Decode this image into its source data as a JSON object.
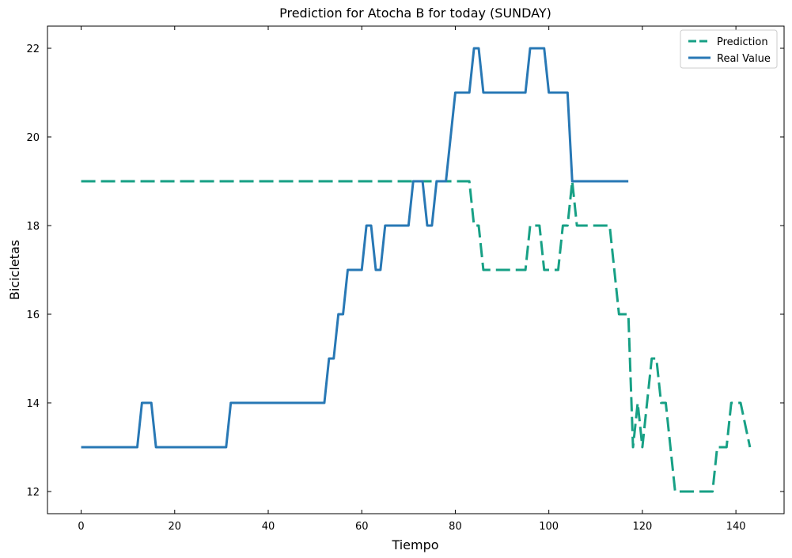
{
  "chart_data": {
    "type": "line",
    "title": "Prediction for Atocha B for today (SUNDAY)",
    "xlabel": "Tiempo",
    "ylabel": "Bicicletas",
    "xlim": [
      -7.2,
      150.3
    ],
    "ylim": [
      11.5,
      22.5
    ],
    "xticks": [
      0,
      20,
      40,
      60,
      80,
      100,
      120,
      140
    ],
    "yticks": [
      12,
      14,
      16,
      18,
      20,
      22
    ],
    "grid": false,
    "legend": {
      "placement": "top-right"
    },
    "series": [
      {
        "name": "Prediction",
        "color": "#17a085",
        "style": "dashed",
        "points": [
          [
            0,
            19
          ],
          [
            83,
            19
          ],
          [
            84,
            18
          ],
          [
            85,
            18
          ],
          [
            86,
            17
          ],
          [
            95,
            17
          ],
          [
            96,
            18
          ],
          [
            98,
            18
          ],
          [
            99,
            17
          ],
          [
            102,
            17
          ],
          [
            103,
            18
          ],
          [
            104,
            18
          ],
          [
            105,
            19
          ],
          [
            106,
            18
          ],
          [
            113,
            18
          ],
          [
            115,
            16
          ],
          [
            117,
            16
          ],
          [
            118,
            13
          ],
          [
            119,
            14
          ],
          [
            120,
            13
          ],
          [
            121,
            14
          ],
          [
            122,
            15
          ],
          [
            123,
            15
          ],
          [
            124,
            14
          ],
          [
            125,
            14
          ],
          [
            127,
            12
          ],
          [
            135,
            12
          ],
          [
            136,
            13
          ],
          [
            138,
            13
          ],
          [
            139,
            14
          ],
          [
            141,
            14
          ],
          [
            143,
            13
          ]
        ]
      },
      {
        "name": "Real Value",
        "color": "#2878b5",
        "style": "solid",
        "points": [
          [
            0,
            13
          ],
          [
            12,
            13
          ],
          [
            13,
            14
          ],
          [
            15,
            14
          ],
          [
            16,
            13
          ],
          [
            31,
            13
          ],
          [
            32,
            14
          ],
          [
            52,
            14
          ],
          [
            53,
            15
          ],
          [
            54,
            15
          ],
          [
            55,
            16
          ],
          [
            56,
            16
          ],
          [
            57,
            17
          ],
          [
            60,
            17
          ],
          [
            61,
            18
          ],
          [
            62,
            18
          ],
          [
            63,
            17
          ],
          [
            64,
            17
          ],
          [
            65,
            18
          ],
          [
            70,
            18
          ],
          [
            71,
            19
          ],
          [
            73,
            19
          ],
          [
            74,
            18
          ],
          [
            75,
            18
          ],
          [
            76,
            19
          ],
          [
            78,
            19
          ],
          [
            80,
            21
          ],
          [
            83,
            21
          ],
          [
            84,
            22
          ],
          [
            85,
            22
          ],
          [
            86,
            21
          ],
          [
            95,
            21
          ],
          [
            96,
            22
          ],
          [
            99,
            22
          ],
          [
            100,
            21
          ],
          [
            104,
            21
          ],
          [
            105,
            19
          ],
          [
            117,
            19
          ]
        ]
      }
    ]
  }
}
